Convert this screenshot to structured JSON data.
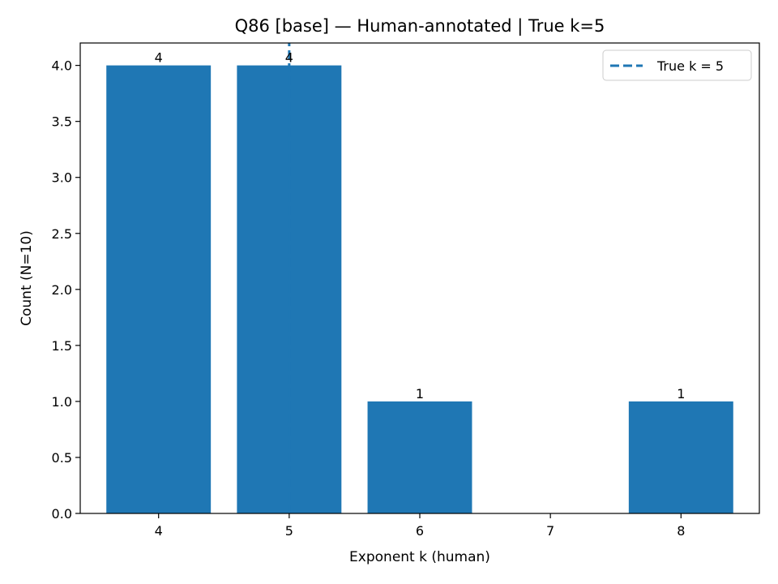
{
  "chart_data": {
    "type": "bar",
    "title": "Q86 [base] — Human-annotated | True k=5",
    "xlabel": "Exponent k (human)",
    "ylabel": "Count (N=10)",
    "categories": [
      "4",
      "5",
      "6",
      "7",
      "8"
    ],
    "x": [
      4,
      5,
      6,
      7,
      8
    ],
    "values": [
      4,
      4,
      1,
      0,
      1
    ],
    "bar_labels": [
      "4",
      "4",
      "1",
      "",
      "1"
    ],
    "ylim": [
      0,
      4.2
    ],
    "xlim": [
      3.4,
      8.6
    ],
    "yticks": [
      0.0,
      0.5,
      1.0,
      1.5,
      2.0,
      2.5,
      3.0,
      3.5,
      4.0
    ],
    "ytick_labels": [
      "0.0",
      "0.5",
      "1.0",
      "1.5",
      "2.0",
      "2.5",
      "3.0",
      "3.5",
      "4.0"
    ],
    "bar_color": "#1f77b4",
    "reference_line": {
      "x": 5,
      "style": "dashed",
      "color": "#1f77b4",
      "label": "True k = 5"
    },
    "legend": {
      "position": "top-right",
      "entries": [
        "True k = 5"
      ]
    },
    "grid": false
  }
}
